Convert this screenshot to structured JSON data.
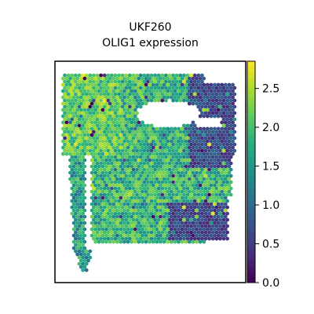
{
  "chart_data": {
    "type": "spatial-scatter",
    "title_line1": "UKF260",
    "title_line2": "OLIG1 expression",
    "colormap": "viridis",
    "colorbar": {
      "min": 0.0,
      "max": 2.85,
      "ticks": [
        {
          "value": 0.0,
          "label": "0.0"
        },
        {
          "value": 0.5,
          "label": "0.5"
        },
        {
          "value": 1.0,
          "label": "1.0"
        },
        {
          "value": 1.5,
          "label": "1.5"
        },
        {
          "value": 2.0,
          "label": "2.0"
        },
        {
          "value": 2.5,
          "label": "2.5"
        }
      ]
    },
    "xlabel": "",
    "ylabel": "",
    "axis_ticks_visible": false,
    "grid": false
  }
}
